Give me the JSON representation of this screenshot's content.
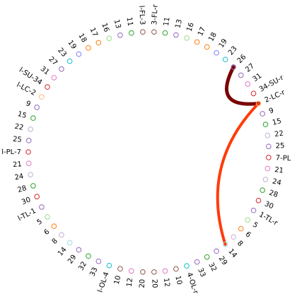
{
  "diagram": {
    "left_nodes": [
      {
        "label": "l-FL-3",
        "color": "#8c564b"
      },
      {
        "label": "11",
        "color": "#2ca02c"
      },
      {
        "label": "13",
        "color": "#9467bd"
      },
      {
        "label": "16",
        "color": "#98df8a"
      },
      {
        "label": "17",
        "color": "#ff7f0e"
      },
      {
        "label": "18",
        "color": "#ff7f0e"
      },
      {
        "label": "19",
        "color": "#7f7fff"
      },
      {
        "label": "23",
        "color": "#17becf"
      },
      {
        "label": "27",
        "color": "#9467bd"
      },
      {
        "label": "31",
        "color": "#e377c2"
      },
      {
        "label": "l-SU-34",
        "color": "#d62728"
      },
      {
        "label": "l-LC-2",
        "color": "#ffbb78"
      },
      {
        "label": "9",
        "color": "#9467bd"
      },
      {
        "label": "15",
        "color": "#2ca02c"
      },
      {
        "label": "22",
        "color": "#c5b0d5"
      },
      {
        "label": "25",
        "color": "#9467bd"
      },
      {
        "label": "l-PL-7",
        "color": "#d62728"
      },
      {
        "label": "21",
        "color": "#e377c2"
      },
      {
        "label": "24",
        "color": "#c5b0d5"
      },
      {
        "label": "28",
        "color": "#2ca02c"
      },
      {
        "label": "30",
        "color": "#d62728"
      },
      {
        "label": "l-TL-1",
        "color": "#9467bd"
      },
      {
        "label": "5",
        "color": "#98df8a"
      },
      {
        "label": "6",
        "color": "#ff7f0e"
      },
      {
        "label": "8",
        "color": "#c5b0d5"
      },
      {
        "label": "14",
        "color": "#9edae5"
      },
      {
        "label": "29",
        "color": "#9467bd"
      },
      {
        "label": "32",
        "color": "#2ca02c"
      },
      {
        "label": "33",
        "color": "#9467bd"
      },
      {
        "label": "l-OL-4",
        "color": "#17becf"
      },
      {
        "label": "10",
        "color": "#8c564b"
      },
      {
        "label": "12",
        "color": "#e377c2"
      },
      {
        "label": "20",
        "color": "#8c564b"
      }
    ],
    "right_nodes": [
      {
        "label": "3-FL-r",
        "color": "#8c564b"
      },
      {
        "label": "11",
        "color": "#2ca02c"
      },
      {
        "label": "13",
        "color": "#9467bd"
      },
      {
        "label": "16",
        "color": "#98df8a"
      },
      {
        "label": "17",
        "color": "#ff7f0e"
      },
      {
        "label": "18",
        "color": "#ff7f0e"
      },
      {
        "label": "19",
        "color": "#7f7fff"
      },
      {
        "label": "23",
        "color": "#17becf"
      },
      {
        "label": "26",
        "color": "#9467bd"
      },
      {
        "label": "27",
        "color": "#9467bd"
      },
      {
        "label": "31",
        "color": "#e377c2"
      },
      {
        "label": "34-SU-r",
        "color": "#d62728"
      },
      {
        "label": "2-LC-r",
        "color": "#ffbb78"
      },
      {
        "label": "9",
        "color": "#9467bd"
      },
      {
        "label": "15",
        "color": "#2ca02c"
      },
      {
        "label": "22",
        "color": "#c5b0d5"
      },
      {
        "label": "25",
        "color": "#9467bd"
      },
      {
        "label": "7-PL",
        "color": "#d62728"
      },
      {
        "label": "21",
        "color": "#e377c2"
      },
      {
        "label": "24",
        "color": "#c5b0d5"
      },
      {
        "label": "28",
        "color": "#2ca02c"
      },
      {
        "label": "30",
        "color": "#d62728"
      },
      {
        "label": "1-TL-r",
        "color": "#9467bd"
      },
      {
        "label": "5",
        "color": "#98df8a"
      },
      {
        "label": "6",
        "color": "#ff7f0e"
      },
      {
        "label": "8",
        "color": "#c5b0d5"
      },
      {
        "label": "14",
        "color": "#9edae5"
      },
      {
        "label": "29",
        "color": "#9467bd"
      },
      {
        "label": "32",
        "color": "#2ca02c"
      },
      {
        "label": "33",
        "color": "#9467bd"
      },
      {
        "label": "4-OL-r",
        "color": "#17becf"
      },
      {
        "label": "10",
        "color": "#8c564b"
      },
      {
        "label": "12",
        "color": "#e377c2"
      },
      {
        "label": "20",
        "color": "#8c564b"
      }
    ]
  }
}
